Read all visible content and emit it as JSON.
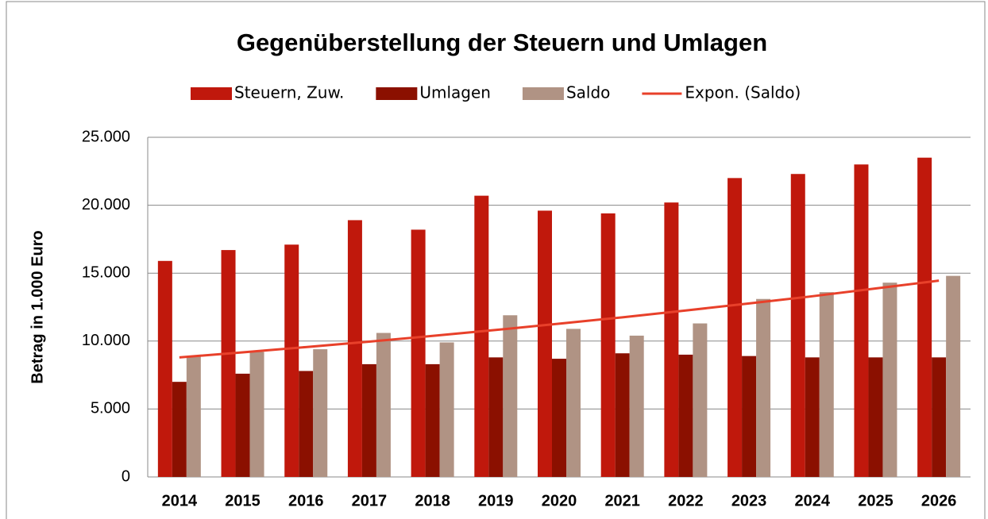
{
  "chart_data": {
    "type": "bar",
    "title": "Gegenüberstellung der Steuern und Umlagen",
    "y_label": "Betrag in 1.000 Euro",
    "categories": [
      "2014",
      "2015",
      "2016",
      "2017",
      "2018",
      "2019",
      "2020",
      "2021",
      "2022",
      "2023",
      "2024",
      "2025",
      "2026"
    ],
    "series": [
      {
        "name": "Steuern, Zuw.",
        "color": "#c0180c",
        "values": [
          15900,
          16700,
          17100,
          18900,
          18200,
          20700,
          19600,
          19400,
          20200,
          22000,
          22300,
          23000,
          23500
        ]
      },
      {
        "name": "Umlagen",
        "color": "#8b1000",
        "values": [
          7000,
          7600,
          7800,
          8300,
          8300,
          8800,
          8700,
          9100,
          9000,
          8900,
          8800,
          8800,
          8800
        ]
      },
      {
        "name": "Saldo",
        "color": "#b09384",
        "values": [
          8900,
          9200,
          9400,
          10600,
          9900,
          11900,
          10900,
          10400,
          11300,
          13100,
          13600,
          14300,
          14800
        ]
      },
      {
        "name": "Expon. (Saldo)",
        "color": "#e8402a",
        "type": "line",
        "values": [
          8800,
          9170,
          9560,
          9960,
          10380,
          10820,
          11280,
          11750,
          12250,
          12770,
          13300,
          13870,
          14450
        ]
      }
    ],
    "ylim": [
      0,
      25000
    ],
    "yticks": [
      0,
      {
        "value": 5000,
        "label": "5.000"
      },
      {
        "value": 10000,
        "label": "10.000"
      },
      {
        "value": 15000,
        "label": "15.000"
      },
      {
        "value": 20000,
        "label": "20.000"
      },
      {
        "value": 25000,
        "label": "25.000"
      }
    ],
    "grid": true,
    "legend": "top"
  }
}
